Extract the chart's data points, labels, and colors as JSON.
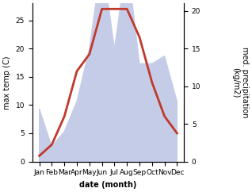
{
  "months": [
    "Jan",
    "Feb",
    "Mar",
    "Apr",
    "May",
    "Jun",
    "Jul",
    "Aug",
    "Sep",
    "Oct",
    "Nov",
    "Dec"
  ],
  "temperature": [
    1,
    3,
    8,
    16,
    19,
    27,
    27,
    27,
    22,
    14,
    8,
    5
  ],
  "precipitation": [
    7,
    2,
    4,
    8,
    15,
    27,
    15,
    27,
    13,
    13,
    14,
    8
  ],
  "temp_color": "#c0392b",
  "precip_color": "#c5cce8",
  "precip_edge_color": "#c5cce8",
  "ylabel_left": "max temp (C)",
  "ylabel_right": "med. precipitation\n(kg/m2)",
  "xlabel": "date (month)",
  "ylim_left": [
    0,
    28
  ],
  "ylim_right": [
    0,
    21
  ],
  "yticks_left": [
    0,
    5,
    10,
    15,
    20,
    25
  ],
  "yticks_right": [
    0,
    5,
    10,
    15,
    20
  ],
  "bg_color": "#ffffff",
  "line_width": 2.0,
  "label_fontsize": 7,
  "tick_fontsize": 6.5
}
